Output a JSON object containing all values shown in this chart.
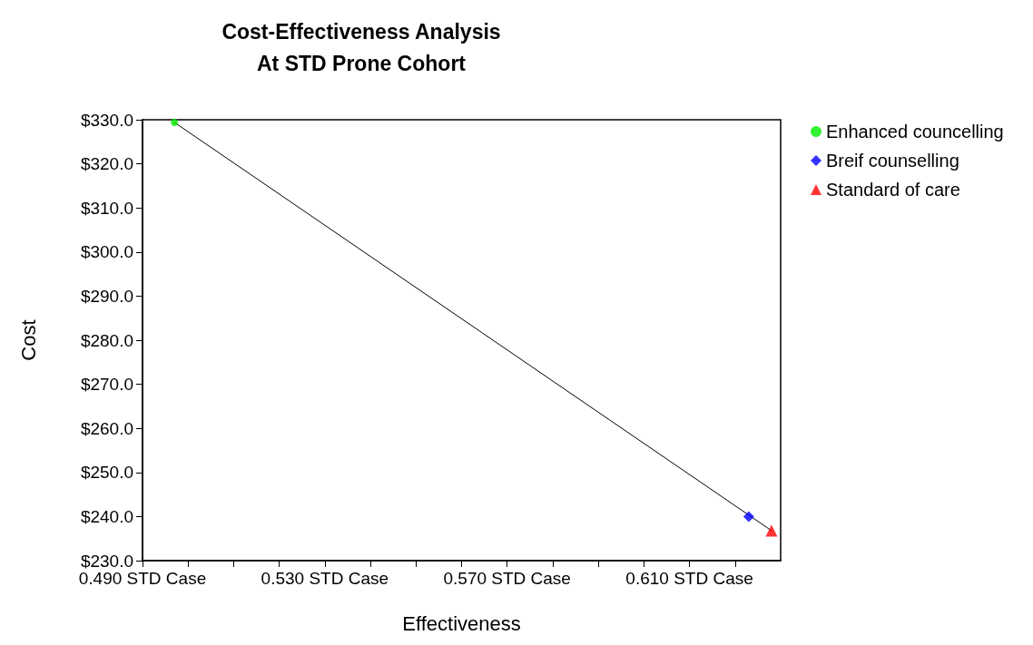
{
  "chart_data": {
    "type": "scatter",
    "title": "Cost-Effectiveness Analysis",
    "subtitle": "At STD Prone Cohort",
    "xlabel": "Effectiveness",
    "ylabel": "Cost",
    "xlim": [
      0.49,
      0.63
    ],
    "xticks": [
      {
        "value": 0.49,
        "label": "0.490 STD Case"
      },
      {
        "value": 0.5,
        "label": null
      },
      {
        "value": 0.51,
        "label": null
      },
      {
        "value": 0.52,
        "label": null
      },
      {
        "value": 0.53,
        "label": "0.530 STD Case"
      },
      {
        "value": 0.54,
        "label": null
      },
      {
        "value": 0.55,
        "label": null
      },
      {
        "value": 0.56,
        "label": null
      },
      {
        "value": 0.57,
        "label": "0.570 STD Case"
      },
      {
        "value": 0.58,
        "label": null
      },
      {
        "value": 0.59,
        "label": null
      },
      {
        "value": 0.6,
        "label": null
      },
      {
        "value": 0.61,
        "label": "0.610 STD Case"
      },
      {
        "value": 0.62,
        "label": null
      }
    ],
    "ylim": [
      230,
      330
    ],
    "yticks": [
      {
        "value": 230,
        "label": "$230.0"
      },
      {
        "value": 240,
        "label": "$240.0"
      },
      {
        "value": 250,
        "label": "$250.0"
      },
      {
        "value": 260,
        "label": "$260.0"
      },
      {
        "value": 270,
        "label": "$270.0"
      },
      {
        "value": 280,
        "label": "$280.0"
      },
      {
        "value": 290,
        "label": "$290.0"
      },
      {
        "value": 300,
        "label": "$300.0"
      },
      {
        "value": 310,
        "label": "$310.0"
      },
      {
        "value": 320,
        "label": "$320.0"
      },
      {
        "value": 330,
        "label": "$330.0"
      }
    ],
    "grid": false,
    "legend": "right",
    "series": [
      {
        "type": "line",
        "color": "#000000",
        "marker": "none",
        "x": [
          0.497,
          0.628
        ],
        "values": [
          329.4,
          236.8
        ]
      },
      {
        "name": "Enhanced councelling",
        "color": "#00ee00",
        "marker": "circle",
        "x": [
          0.497
        ],
        "values": [
          329.4
        ]
      },
      {
        "name": "Breif counselling",
        "color": "#0000ff",
        "marker": "diamond",
        "x": [
          0.623
        ],
        "values": [
          240.0
        ]
      },
      {
        "name": "Standard of care",
        "color": "#ff0000",
        "marker": "triangle",
        "x": [
          0.628
        ],
        "values": [
          236.8
        ]
      }
    ]
  }
}
